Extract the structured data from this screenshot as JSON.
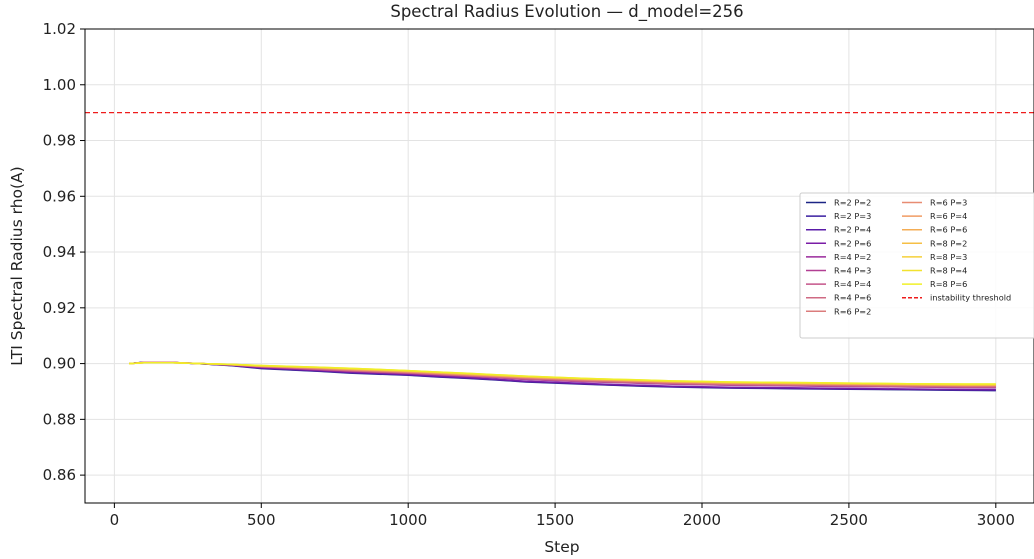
{
  "chart_data": {
    "type": "line",
    "title": "Spectral Radius Evolution — d_model=256",
    "xlabel": "Step",
    "ylabel": "LTI Spectral Radius rho(A)",
    "xlim": [
      -100,
      3130
    ],
    "ylim": [
      0.85,
      1.02
    ],
    "xticks": [
      0,
      500,
      1000,
      1500,
      2000,
      2500,
      3000
    ],
    "yticks": [
      0.86,
      0.88,
      0.9,
      0.92,
      0.94,
      0.96,
      0.98,
      1.0,
      1.02
    ],
    "ytick_labels": [
      "0.86",
      "0.88",
      "0.90",
      "0.92",
      "0.94",
      "0.96",
      "0.98",
      "1.00",
      "1.02"
    ],
    "grid": true,
    "legend_position": "center-right",
    "legend_columns": 2,
    "threshold": {
      "name": "instability threshold",
      "y": 0.99,
      "color": "#ee1c1c",
      "style": "dashed"
    },
    "x": [
      50,
      100,
      200,
      300,
      400,
      500,
      600,
      700,
      800,
      900,
      1000,
      1100,
      1200,
      1300,
      1400,
      1500,
      1600,
      1700,
      1800,
      1900,
      2000,
      2100,
      2200,
      2300,
      2400,
      2500,
      2600,
      2700,
      2800,
      2900,
      3000
    ],
    "series": [
      {
        "name": "R=2 P=2",
        "color": "#1c2585",
        "values": [
          0.9,
          0.9005,
          0.9004,
          0.8999,
          0.8992,
          0.8982,
          0.8977,
          0.8972,
          0.8966,
          0.8962,
          0.8958,
          0.8952,
          0.8947,
          0.8941,
          0.8934,
          0.893,
          0.8926,
          0.8922,
          0.8919,
          0.8916,
          0.8914,
          0.8912,
          0.8911,
          0.891,
          0.8909,
          0.8908,
          0.8907,
          0.8906,
          0.8905,
          0.8904,
          0.8903
        ]
      },
      {
        "name": "R=2 P=3",
        "color": "#3a1fa0",
        "values": [
          0.9,
          0.9005,
          0.9004,
          0.8999,
          0.8993,
          0.8983,
          0.8978,
          0.8973,
          0.8967,
          0.8963,
          0.8959,
          0.8953,
          0.8948,
          0.8942,
          0.8935,
          0.8931,
          0.8927,
          0.8923,
          0.892,
          0.8917,
          0.8915,
          0.8913,
          0.8912,
          0.8911,
          0.891,
          0.8909,
          0.8908,
          0.8907,
          0.8906,
          0.8905,
          0.8904
        ]
      },
      {
        "name": "R=2 P=4",
        "color": "#5a1ba8",
        "values": [
          0.9,
          0.9005,
          0.9004,
          0.8999,
          0.8993,
          0.8984,
          0.8979,
          0.8974,
          0.8968,
          0.8964,
          0.896,
          0.8954,
          0.8949,
          0.8943,
          0.8936,
          0.8932,
          0.8928,
          0.8924,
          0.8921,
          0.8918,
          0.8916,
          0.8914,
          0.8913,
          0.8912,
          0.8911,
          0.891,
          0.8909,
          0.8908,
          0.8907,
          0.8906,
          0.8906
        ]
      },
      {
        "name": "R=2 P=6",
        "color": "#7a1ca6",
        "values": [
          0.9,
          0.9005,
          0.9004,
          0.8999,
          0.8994,
          0.8985,
          0.898,
          0.8975,
          0.8969,
          0.8965,
          0.8961,
          0.8955,
          0.895,
          0.8944,
          0.8937,
          0.8933,
          0.8929,
          0.8925,
          0.8922,
          0.8919,
          0.8917,
          0.8915,
          0.8914,
          0.8913,
          0.8912,
          0.8911,
          0.891,
          0.8909,
          0.8908,
          0.8907,
          0.8907
        ]
      },
      {
        "name": "R=4 P=2",
        "color": "#9a2a9c",
        "values": [
          0.9,
          0.9004,
          0.9004,
          0.9,
          0.8995,
          0.8987,
          0.8982,
          0.8977,
          0.8972,
          0.8968,
          0.8964,
          0.8959,
          0.8954,
          0.8949,
          0.8943,
          0.8939,
          0.8935,
          0.8932,
          0.8929,
          0.8926,
          0.8924,
          0.8922,
          0.8921,
          0.892,
          0.8919,
          0.8918,
          0.8917,
          0.8916,
          0.8915,
          0.8914,
          0.8914
        ]
      },
      {
        "name": "R=4 P=3",
        "color": "#b23f93",
        "values": [
          0.9,
          0.9004,
          0.9004,
          0.9,
          0.8995,
          0.8988,
          0.8983,
          0.8978,
          0.8973,
          0.8969,
          0.8965,
          0.896,
          0.8955,
          0.895,
          0.8944,
          0.894,
          0.8936,
          0.8933,
          0.893,
          0.8927,
          0.8925,
          0.8923,
          0.8922,
          0.8921,
          0.892,
          0.8919,
          0.8918,
          0.8917,
          0.8916,
          0.8915,
          0.8915
        ]
      },
      {
        "name": "R=4 P=4",
        "color": "#c4548a",
        "values": [
          0.9,
          0.9004,
          0.9004,
          0.9,
          0.8995,
          0.8988,
          0.8984,
          0.8979,
          0.8974,
          0.897,
          0.8966,
          0.8961,
          0.8956,
          0.8951,
          0.8945,
          0.8941,
          0.8937,
          0.8934,
          0.8931,
          0.8928,
          0.8926,
          0.8924,
          0.8923,
          0.8922,
          0.8921,
          0.892,
          0.8919,
          0.8918,
          0.8917,
          0.8916,
          0.8916
        ]
      },
      {
        "name": "R=4 P=6",
        "color": "#cf6a83",
        "values": [
          0.9,
          0.9004,
          0.9004,
          0.9,
          0.8996,
          0.8989,
          0.8985,
          0.898,
          0.8975,
          0.8971,
          0.8967,
          0.8962,
          0.8957,
          0.8952,
          0.8946,
          0.8942,
          0.8938,
          0.8935,
          0.8932,
          0.8929,
          0.8927,
          0.8925,
          0.8924,
          0.8923,
          0.8922,
          0.8921,
          0.892,
          0.8919,
          0.8918,
          0.8917,
          0.8917
        ]
      },
      {
        "name": "R=6 P=2",
        "color": "#db7c7c",
        "values": [
          0.9,
          0.9004,
          0.9004,
          0.9,
          0.8996,
          0.899,
          0.8986,
          0.8982,
          0.8977,
          0.8973,
          0.8969,
          0.8964,
          0.8959,
          0.8954,
          0.8949,
          0.8945,
          0.8941,
          0.8938,
          0.8935,
          0.8932,
          0.893,
          0.8928,
          0.8927,
          0.8926,
          0.8925,
          0.8924,
          0.8923,
          0.8922,
          0.8921,
          0.892,
          0.892
        ]
      },
      {
        "name": "R=6 P=3",
        "color": "#e88c72",
        "values": [
          0.9,
          0.9004,
          0.9004,
          0.9,
          0.8996,
          0.899,
          0.8987,
          0.8983,
          0.8978,
          0.8974,
          0.897,
          0.8965,
          0.896,
          0.8955,
          0.895,
          0.8946,
          0.8942,
          0.8939,
          0.8936,
          0.8933,
          0.8931,
          0.8929,
          0.8928,
          0.8927,
          0.8926,
          0.8925,
          0.8924,
          0.8923,
          0.8922,
          0.8921,
          0.8921
        ]
      },
      {
        "name": "R=6 P=4",
        "color": "#f19b63",
        "values": [
          0.9,
          0.9003,
          0.9003,
          0.9,
          0.8996,
          0.8991,
          0.8988,
          0.8984,
          0.8979,
          0.8975,
          0.8971,
          0.8966,
          0.8961,
          0.8956,
          0.8951,
          0.8947,
          0.8943,
          0.894,
          0.8937,
          0.8934,
          0.8932,
          0.893,
          0.8929,
          0.8928,
          0.8927,
          0.8926,
          0.8925,
          0.8924,
          0.8923,
          0.8922,
          0.8922
        ]
      },
      {
        "name": "R=6 P=6",
        "color": "#f4ad55",
        "values": [
          0.9,
          0.9003,
          0.9003,
          0.9,
          0.8996,
          0.8991,
          0.8988,
          0.8985,
          0.898,
          0.8976,
          0.8972,
          0.8967,
          0.8962,
          0.8957,
          0.8952,
          0.8948,
          0.8944,
          0.8941,
          0.8938,
          0.8935,
          0.8933,
          0.8931,
          0.893,
          0.8929,
          0.8928,
          0.8927,
          0.8926,
          0.8925,
          0.8924,
          0.8923,
          0.8923
        ]
      },
      {
        "name": "R=8 P=2",
        "color": "#f6bf45",
        "values": [
          0.9,
          0.9003,
          0.9003,
          0.9,
          0.8997,
          0.8992,
          0.8989,
          0.8986,
          0.8981,
          0.8977,
          0.8973,
          0.8968,
          0.8963,
          0.8958,
          0.8953,
          0.8949,
          0.8945,
          0.8942,
          0.8939,
          0.8936,
          0.8934,
          0.8932,
          0.8931,
          0.893,
          0.8929,
          0.8928,
          0.8927,
          0.8926,
          0.8925,
          0.8924,
          0.8924
        ]
      },
      {
        "name": "R=8 P=3",
        "color": "#f5d13a",
        "values": [
          0.9,
          0.9003,
          0.9003,
          0.9,
          0.8997,
          0.8992,
          0.8989,
          0.8986,
          0.8982,
          0.8978,
          0.8974,
          0.8969,
          0.8964,
          0.8959,
          0.8954,
          0.895,
          0.8946,
          0.8943,
          0.894,
          0.8937,
          0.8935,
          0.8933,
          0.8932,
          0.8931,
          0.893,
          0.8929,
          0.8928,
          0.8927,
          0.8926,
          0.8925,
          0.8925
        ]
      },
      {
        "name": "R=8 P=4",
        "color": "#f2e22f",
        "values": [
          0.9,
          0.9003,
          0.9003,
          0.9,
          0.8997,
          0.8993,
          0.899,
          0.8987,
          0.8983,
          0.8979,
          0.8975,
          0.897,
          0.8965,
          0.896,
          0.8955,
          0.8951,
          0.8947,
          0.8944,
          0.8941,
          0.8938,
          0.8936,
          0.8934,
          0.8933,
          0.8932,
          0.8931,
          0.893,
          0.8929,
          0.8928,
          0.8927,
          0.8926,
          0.8926
        ]
      },
      {
        "name": "R=8 P=6",
        "color": "#f0f028",
        "values": [
          0.9,
          0.9003,
          0.9003,
          0.9,
          0.8997,
          0.8993,
          0.899,
          0.8987,
          0.8983,
          0.8979,
          0.8975,
          0.897,
          0.8965,
          0.896,
          0.8955,
          0.8951,
          0.8947,
          0.8944,
          0.8941,
          0.8938,
          0.8936,
          0.8934,
          0.8933,
          0.8932,
          0.8931,
          0.893,
          0.8929,
          0.8928,
          0.8927,
          0.8927,
          0.8927
        ]
      }
    ]
  }
}
